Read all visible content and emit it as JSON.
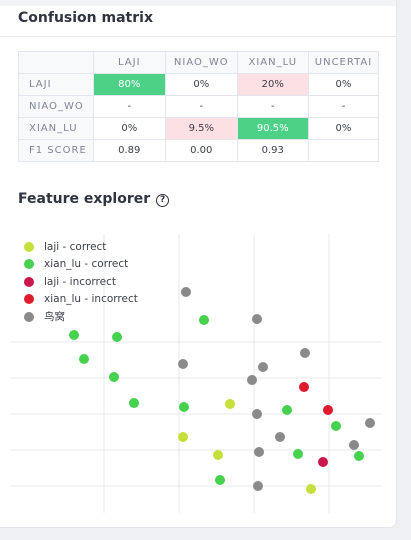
{
  "confusion_matrix": {
    "title": "Confusion matrix",
    "columns": [
      "LAJI",
      "NIAO_WO",
      "XIAN_LU",
      "UNCERTAI"
    ],
    "rows": [
      {
        "label": "LAJI",
        "cells": [
          "80%",
          "0%",
          "20%",
          "0%"
        ],
        "styles": [
          "good",
          "",
          "bad",
          ""
        ]
      },
      {
        "label": "NIAO_WO",
        "cells": [
          "-",
          "-",
          "-",
          "-"
        ],
        "styles": [
          "",
          "",
          "",
          ""
        ]
      },
      {
        "label": "XIAN_LU",
        "cells": [
          "0%",
          "9.5%",
          "90.5%",
          "0%"
        ],
        "styles": [
          "",
          "bad",
          "good",
          ""
        ]
      },
      {
        "label": "F1 SCORE",
        "cells": [
          "0.89",
          "0.00",
          "0.93",
          ""
        ],
        "styles": [
          "",
          "",
          "",
          ""
        ]
      }
    ]
  },
  "feature_explorer": {
    "title": "Feature explorer",
    "help_glyph": "?",
    "legend": [
      {
        "label": "laji - correct",
        "color": "#c6df3a"
      },
      {
        "label": "xian_lu - correct",
        "color": "#46d24e"
      },
      {
        "label": "laji - incorrect",
        "color": "#c8174a"
      },
      {
        "label": "xian_lu - incorrect",
        "color": "#e01b2e"
      },
      {
        "label": "鸟窝",
        "color": "#8a8a8a"
      }
    ]
  },
  "chart_data": {
    "type": "scatter",
    "title": "",
    "xlabel": "",
    "ylabel": "",
    "grid": true,
    "legend_position": "top-left",
    "series": [
      {
        "name": "laji - correct",
        "color": "#c6df3a",
        "points": [
          [
            230,
            404
          ],
          [
            183,
            437
          ],
          [
            218,
            455
          ],
          [
            311,
            489
          ]
        ]
      },
      {
        "name": "xian_lu - correct",
        "color": "#46d24e",
        "points": [
          [
            204,
            320
          ],
          [
            74,
            335
          ],
          [
            117,
            337
          ],
          [
            84,
            359
          ],
          [
            114,
            377
          ],
          [
            134,
            403
          ],
          [
            184,
            407
          ],
          [
            287,
            410
          ],
          [
            336,
            426
          ],
          [
            298,
            454
          ],
          [
            359,
            456
          ],
          [
            220,
            480
          ]
        ]
      },
      {
        "name": "laji - incorrect",
        "color": "#c8174a",
        "points": [
          [
            323,
            462
          ]
        ]
      },
      {
        "name": "xian_lu - incorrect",
        "color": "#e01b2e",
        "points": [
          [
            304,
            387
          ],
          [
            328,
            410
          ]
        ]
      },
      {
        "name": "鸟窝",
        "color": "#8a8a8a",
        "points": [
          [
            186,
            292
          ],
          [
            257,
            319
          ],
          [
            305,
            353
          ],
          [
            183,
            364
          ],
          [
            263,
            367
          ],
          [
            252,
            380
          ],
          [
            257,
            414
          ],
          [
            370,
            423
          ],
          [
            280,
            437
          ],
          [
            354,
            445
          ],
          [
            259,
            452
          ],
          [
            258,
            486
          ]
        ]
      }
    ]
  }
}
